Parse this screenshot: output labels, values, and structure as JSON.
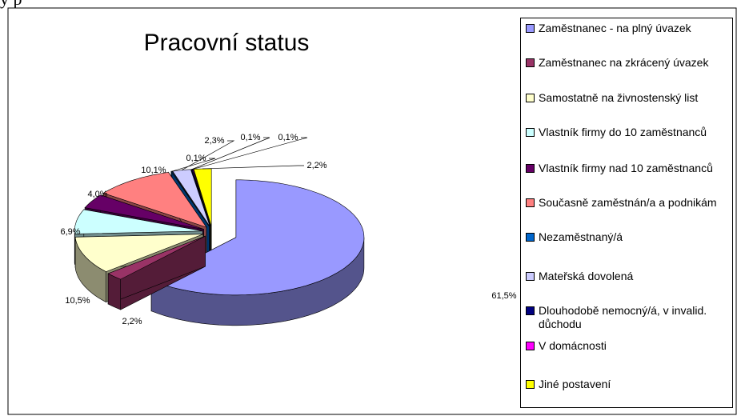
{
  "caption": "y p",
  "chart_data": {
    "type": "pie3d",
    "title": "Pracovní status",
    "categories": [
      "Zaměstnanec - na plný úvazek",
      "Zaměstnanec na zkrácený úvazek",
      "Samostatně na živnostenský list",
      "Vlastník firmy do 10 zaměstnanců",
      "Vlastník firmy nad 10 zaměstnanců",
      "Současně zaměstnán/a a podnikám",
      "Nezaměstnaný/á",
      "Mateřská dovolená",
      "Dlouhodobě nemocný/á, v invalid. důchodu",
      "V domácnosti",
      "Jiné postavení"
    ],
    "values": [
      61.5,
      2.2,
      10.5,
      6.9,
      4.0,
      10.1,
      0.1,
      2.3,
      0.1,
      0.1,
      2.2
    ],
    "value_labels": [
      "61,5%",
      "2,2%",
      "10,5%",
      "6,9%",
      "4,0%",
      "10,1%",
      "0,1%",
      "2,3%",
      "0,1%",
      "0,1%",
      "2,2%"
    ],
    "colors": [
      "#9999ff",
      "#993366",
      "#ffffcc",
      "#ccffff",
      "#660066",
      "#ff8080",
      "#0066cc",
      "#ccccff",
      "#000080",
      "#ff00ff",
      "#ffff00"
    ],
    "legend": "right"
  }
}
